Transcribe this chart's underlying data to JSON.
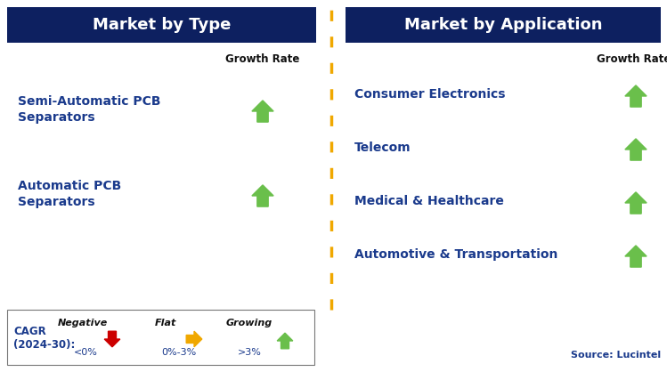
{
  "left_title": "Market by Type",
  "right_title": "Market by Application",
  "header_bg": "#0d2060",
  "header_text_color": "#ffffff",
  "left_items": [
    "Semi-Automatic PCB\nSeparators",
    "Automatic PCB\nSeparators"
  ],
  "right_items": [
    "Consumer Electronics",
    "Telecom",
    "Medical & Healthcare",
    "Automotive & Transportation"
  ],
  "item_text_color": "#1a3a8c",
  "growth_rate_label": "Growth Rate",
  "growth_rate_color": "#111111",
  "arrow_up_color": "#6abf4b",
  "arrow_flat_color": "#f0a800",
  "arrow_down_color": "#cc0000",
  "divider_color": "#f0a800",
  "source_text": "Source: Lucintel",
  "legend_cagr_line1": "CAGR",
  "legend_cagr_line2": "(2024-30):",
  "legend_negative_label": "Negative",
  "legend_negative_sub": "<0%",
  "legend_flat_label": "Flat",
  "legend_flat_sub": "0%-3%",
  "legend_growing_label": "Growing",
  "legend_growing_sub": ">3%",
  "bg_color": "#ffffff"
}
